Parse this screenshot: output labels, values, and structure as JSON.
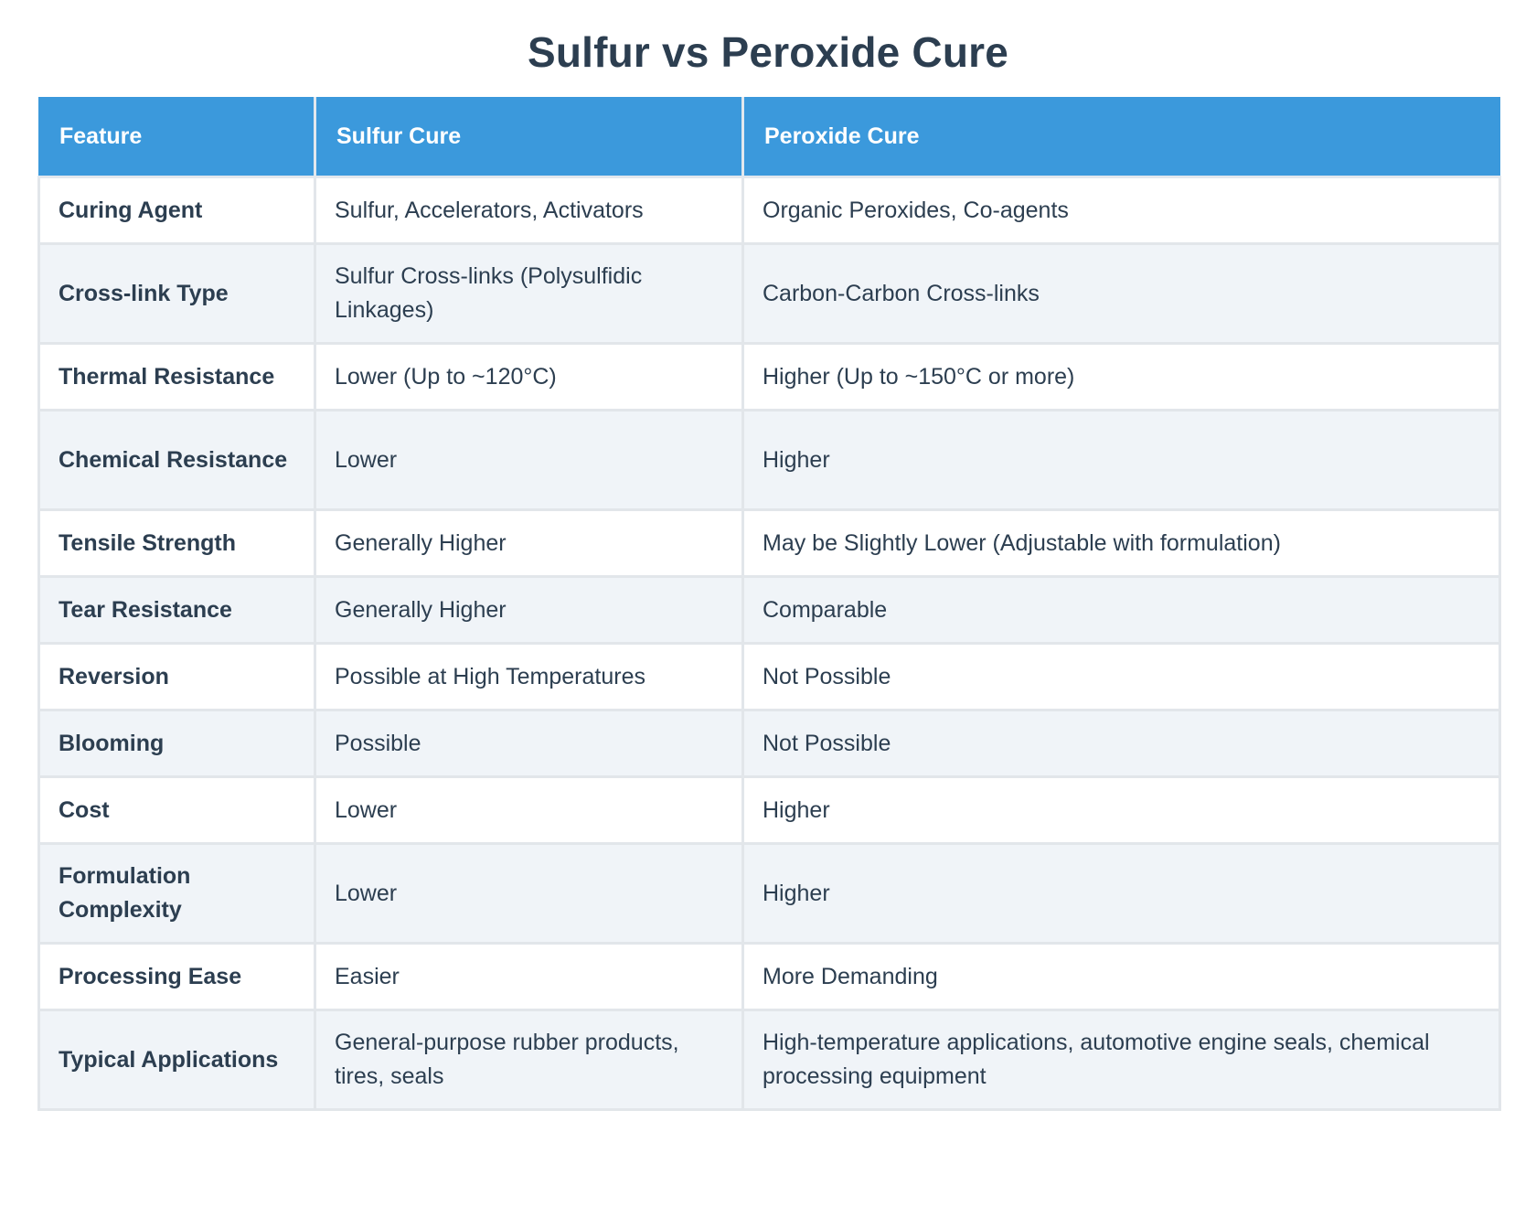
{
  "title": "Sulfur vs Peroxide Cure",
  "table": {
    "headers": [
      "Feature",
      "Sulfur Cure",
      "Peroxide Cure"
    ],
    "rows": [
      {
        "feature": "Curing Agent",
        "sulfur": "Sulfur, Accelerators, Activators",
        "peroxide": "Organic Peroxides, Co-agents"
      },
      {
        "feature": "Cross-link Type",
        "sulfur": "Sulfur Cross-links (Polysulfidic Linkages)",
        "peroxide": "Carbon-Carbon Cross-links"
      },
      {
        "feature": "Thermal Resistance",
        "sulfur": "Lower (Up to ~120°C)",
        "peroxide": "Higher (Up to ~150°C or more)"
      },
      {
        "feature": "Chemical Resistance",
        "sulfur": "Lower",
        "peroxide": "Higher"
      },
      {
        "feature": "Tensile Strength",
        "sulfur": "Generally Higher",
        "peroxide": "May be Slightly Lower (Adjustable with formulation)"
      },
      {
        "feature": "Tear Resistance",
        "sulfur": "Generally Higher",
        "peroxide": "Comparable"
      },
      {
        "feature": "Reversion",
        "sulfur": "Possible at High Temperatures",
        "peroxide": "Not Possible"
      },
      {
        "feature": "Blooming",
        "sulfur": "Possible",
        "peroxide": "Not Possible"
      },
      {
        "feature": "Cost",
        "sulfur": "Lower",
        "peroxide": "Higher"
      },
      {
        "feature": "Formulation Complexity",
        "sulfur": "Lower",
        "peroxide": "Higher"
      },
      {
        "feature": "Processing Ease",
        "sulfur": "Easier",
        "peroxide": "More Demanding"
      },
      {
        "feature": "Typical Applications",
        "sulfur": "General-purpose rubber products, tires, seals",
        "peroxide": "High-temperature applications, automotive engine seals, chemical processing equipment"
      }
    ]
  },
  "colors": {
    "header_bg": "#3b99dc",
    "title_text": "#2c3e50",
    "row_alt_bg": "#f0f4f8"
  }
}
